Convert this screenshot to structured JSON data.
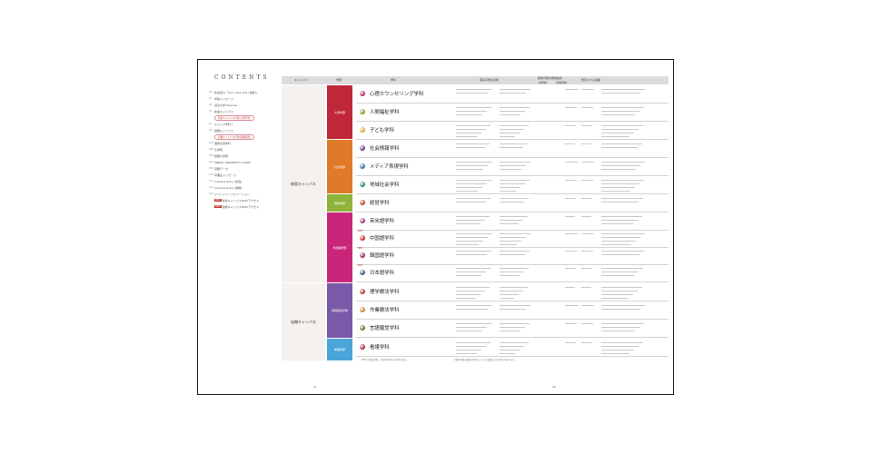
{
  "contents": {
    "title": "CONTENTS",
    "items": [
      {
        "num": "02",
        "label": "新宿自分「Your chat chat (抜粋)」"
      },
      {
        "num": "15",
        "label": "学長メッセージ"
      },
      {
        "num": "18",
        "label": "目白大学 Essence"
      },
      {
        "num": "22",
        "label": "新宿キャンパス"
      },
      {
        "num": "",
        "label": "",
        "pill": "新宿キャンパス学科(心理学部)"
      },
      {
        "num": "23",
        "label": "キャンプ学科ス"
      },
      {
        "num": "26",
        "label": "岩槻キャンパス"
      },
      {
        "num": "",
        "label": "",
        "pill": "岩槻キャンパス学科(保健医療)"
      },
      {
        "num": "104",
        "label": "国際交流学科"
      },
      {
        "num": "105",
        "label": "大学院"
      },
      {
        "num": "106",
        "label": "短期大学部"
      },
      {
        "num": "107",
        "label": "MEJIRO UNIVERSITY GUIDE"
      },
      {
        "num": "109",
        "label": "就職データ"
      },
      {
        "num": "110",
        "label": "卒業生メッセージ"
      },
      {
        "num": "111",
        "label": "Campus Diary (新宿)"
      },
      {
        "num": "112",
        "label": "Campus Diary (岩槻)"
      },
      {
        "num": "113",
        "label": "イベントインフォメーション"
      },
      {
        "num": "",
        "tag": "NEW",
        "label": "新宿キャンパスMAP/アクセス"
      },
      {
        "num": "",
        "tag": "NEW",
        "label": "岩槻キャンパスMAP/アクセス"
      }
    ]
  },
  "table": {
    "headers": [
      "キャンパス",
      "学部",
      "学科",
      "取得可能な資格",
      "取得可能な教員免許",
      "中学校",
      "高等学校",
      "想定される進路"
    ],
    "campuses": [
      {
        "label": "新宿キャンパス"
      },
      {
        "label": "岩槻キャンパス"
      }
    ],
    "faculties": [
      {
        "label": "人間学部",
        "color": "#c0283a"
      },
      {
        "label": "社会学部",
        "color": "#e07a28"
      },
      {
        "label": "経営学部",
        "color": "#8db33a"
      },
      {
        "label": "外国語学部",
        "color": "#c9267a"
      },
      {
        "label": "保健医療学部",
        "color": "#7a5aa8"
      },
      {
        "label": "看護学部",
        "color": "#4aa6d8"
      }
    ],
    "departments": [
      {
        "name": "心理カウンセリング学科",
        "color": "#b02a6a",
        "badge": ""
      },
      {
        "name": "人間福祉学科",
        "color": "#8a9a2a",
        "badge": ""
      },
      {
        "name": "子ども学科",
        "color": "#e2a33a",
        "badge": ""
      },
      {
        "name": "社会情報学科",
        "color": "#6a3a8a",
        "badge": ""
      },
      {
        "name": "メディア表現学科",
        "color": "#3a6ab0",
        "badge": ""
      },
      {
        "name": "地域社会学科",
        "color": "#2a8a6a",
        "badge": ""
      },
      {
        "name": "経営学科",
        "color": "#c0402a",
        "badge": ""
      },
      {
        "name": "英米語学科",
        "color": "#a03a8a",
        "badge": ""
      },
      {
        "name": "中国語学科",
        "color": "#c0282a",
        "badge": "NEW"
      },
      {
        "name": "韓国語学科",
        "color": "#8a2a6a",
        "badge": "NEW"
      },
      {
        "name": "日本語学科",
        "color": "#3a5a8a",
        "badge": "NEW"
      },
      {
        "name": "理学療法学科",
        "color": "#b0382a",
        "badge": ""
      },
      {
        "name": "作業療法学科",
        "color": "#c08a2a",
        "badge": ""
      },
      {
        "name": "言語聴覚学科",
        "color": "#7a6a2a",
        "badge": ""
      },
      {
        "name": "看護学科",
        "color": "#a02a4a",
        "badge": ""
      }
    ],
    "footnote_left": "NEW は新設学科。認定申請予定の学科を含む。",
    "footnote_right": "※取得可能な資格や免許については変更になる場合があります。"
  },
  "pages": {
    "left": "21",
    "right": "26"
  }
}
